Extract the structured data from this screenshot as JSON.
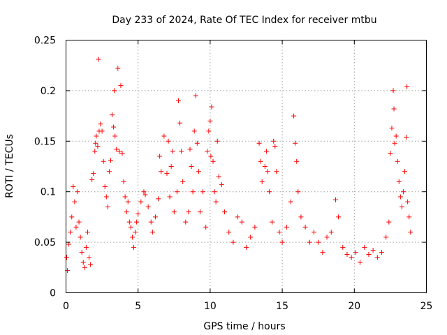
{
  "chart_data": {
    "type": "scatter",
    "title": "Day 233 of 2024, Rate Of TEC Index for receiver mtbu",
    "xlabel": "GPS time / hours",
    "ylabel": "ROTI / TECUs",
    "xlim": [
      0,
      25
    ],
    "ylim": [
      0,
      0.25
    ],
    "x_ticks": [
      "0",
      "5",
      "10",
      "15",
      "20",
      "25"
    ],
    "y_ticks": [
      "0",
      "0.05",
      "0.1",
      "0.15",
      "0.2",
      "0.25"
    ],
    "grid": true,
    "marker": "plus",
    "color": "#ff0000",
    "series": [
      {
        "points": [
          [
            0.05,
            0.035
          ],
          [
            0.1,
            0.022
          ],
          [
            0.2,
            0.048
          ],
          [
            0.3,
            0.06
          ],
          [
            0.4,
            0.075
          ],
          [
            0.5,
            0.105
          ],
          [
            0.6,
            0.09
          ],
          [
            0.7,
            0.065
          ],
          [
            0.8,
            0.1
          ],
          [
            0.9,
            0.07
          ],
          [
            1.0,
            0.055
          ],
          [
            1.1,
            0.04
          ],
          [
            1.2,
            0.03
          ],
          [
            1.3,
            0.025
          ],
          [
            1.4,
            0.045
          ],
          [
            1.5,
            0.06
          ],
          [
            1.6,
            0.035
          ],
          [
            1.7,
            0.028
          ],
          [
            1.8,
            0.112
          ],
          [
            1.9,
            0.118
          ],
          [
            2.0,
            0.14
          ],
          [
            2.05,
            0.148
          ],
          [
            2.1,
            0.155
          ],
          [
            2.2,
            0.145
          ],
          [
            2.25,
            0.231
          ],
          [
            2.3,
            0.16
          ],
          [
            2.4,
            0.167
          ],
          [
            2.5,
            0.16
          ],
          [
            2.6,
            0.13
          ],
          [
            2.7,
            0.105
          ],
          [
            2.8,
            0.095
          ],
          [
            2.9,
            0.085
          ],
          [
            3.0,
            0.12
          ],
          [
            3.1,
            0.131
          ],
          [
            3.2,
            0.176
          ],
          [
            3.3,
            0.164
          ],
          [
            3.35,
            0.2
          ],
          [
            3.4,
            0.155
          ],
          [
            3.5,
            0.142
          ],
          [
            3.6,
            0.222
          ],
          [
            3.7,
            0.14
          ],
          [
            3.8,
            0.205
          ],
          [
            3.9,
            0.138
          ],
          [
            4.0,
            0.11
          ],
          [
            4.1,
            0.095
          ],
          [
            4.2,
            0.08
          ],
          [
            4.3,
            0.09
          ],
          [
            4.4,
            0.07
          ],
          [
            4.5,
            0.065
          ],
          [
            4.6,
            0.055
          ],
          [
            4.7,
            0.045
          ],
          [
            4.8,
            0.06
          ],
          [
            4.9,
            0.07
          ],
          [
            5.0,
            0.078
          ],
          [
            5.2,
            0.09
          ],
          [
            5.4,
            0.1
          ],
          [
            5.5,
            0.097
          ],
          [
            5.7,
            0.085
          ],
          [
            5.9,
            0.07
          ],
          [
            6.0,
            0.06
          ],
          [
            6.2,
            0.075
          ],
          [
            6.4,
            0.093
          ],
          [
            6.5,
            0.135
          ],
          [
            6.6,
            0.12
          ],
          [
            6.8,
            0.155
          ],
          [
            7.0,
            0.118
          ],
          [
            7.1,
            0.15
          ],
          [
            7.2,
            0.095
          ],
          [
            7.3,
            0.125
          ],
          [
            7.4,
            0.14
          ],
          [
            7.5,
            0.08
          ],
          [
            7.7,
            0.1
          ],
          [
            7.8,
            0.19
          ],
          [
            7.9,
            0.168
          ],
          [
            8.0,
            0.14
          ],
          [
            8.1,
            0.11
          ],
          [
            8.3,
            0.07
          ],
          [
            8.5,
            0.08
          ],
          [
            8.6,
            0.142
          ],
          [
            8.7,
            0.125
          ],
          [
            8.8,
            0.1
          ],
          [
            8.9,
            0.16
          ],
          [
            9.0,
            0.195
          ],
          [
            9.1,
            0.148
          ],
          [
            9.2,
            0.12
          ],
          [
            9.3,
            0.08
          ],
          [
            9.5,
            0.1
          ],
          [
            9.7,
            0.065
          ],
          [
            9.8,
            0.14
          ],
          [
            9.9,
            0.16
          ],
          [
            10.0,
            0.17
          ],
          [
            10.05,
            0.135
          ],
          [
            10.1,
            0.184
          ],
          [
            10.2,
            0.13
          ],
          [
            10.3,
            0.1
          ],
          [
            10.4,
            0.09
          ],
          [
            10.5,
            0.15
          ],
          [
            10.6,
            0.115
          ],
          [
            10.8,
            0.107
          ],
          [
            11.0,
            0.08
          ],
          [
            11.3,
            0.06
          ],
          [
            11.6,
            0.05
          ],
          [
            11.9,
            0.075
          ],
          [
            12.2,
            0.07
          ],
          [
            12.5,
            0.045
          ],
          [
            12.8,
            0.055
          ],
          [
            13.1,
            0.065
          ],
          [
            13.4,
            0.148
          ],
          [
            13.5,
            0.13
          ],
          [
            13.6,
            0.11
          ],
          [
            13.8,
            0.125
          ],
          [
            13.9,
            0.14
          ],
          [
            14.0,
            0.12
          ],
          [
            14.1,
            0.1
          ],
          [
            14.3,
            0.07
          ],
          [
            14.4,
            0.15
          ],
          [
            14.5,
            0.145
          ],
          [
            14.6,
            0.12
          ],
          [
            14.8,
            0.06
          ],
          [
            15.0,
            0.05
          ],
          [
            15.3,
            0.065
          ],
          [
            15.6,
            0.09
          ],
          [
            15.8,
            0.175
          ],
          [
            15.9,
            0.148
          ],
          [
            16.0,
            0.13
          ],
          [
            16.1,
            0.1
          ],
          [
            16.3,
            0.075
          ],
          [
            16.6,
            0.065
          ],
          [
            16.9,
            0.05
          ],
          [
            17.2,
            0.06
          ],
          [
            17.5,
            0.05
          ],
          [
            17.8,
            0.04
          ],
          [
            18.1,
            0.055
          ],
          [
            18.4,
            0.06
          ],
          [
            18.7,
            0.092
          ],
          [
            18.9,
            0.075
          ],
          [
            19.2,
            0.045
          ],
          [
            19.5,
            0.038
          ],
          [
            19.8,
            0.035
          ],
          [
            20.1,
            0.04
          ],
          [
            20.4,
            0.03
          ],
          [
            20.7,
            0.045
          ],
          [
            21.0,
            0.038
          ],
          [
            21.3,
            0.042
          ],
          [
            21.6,
            0.035
          ],
          [
            21.9,
            0.04
          ],
          [
            22.2,
            0.055
          ],
          [
            22.4,
            0.07
          ],
          [
            22.5,
            0.138
          ],
          [
            22.6,
            0.163
          ],
          [
            22.7,
            0.2
          ],
          [
            22.75,
            0.182
          ],
          [
            22.8,
            0.148
          ],
          [
            22.9,
            0.155
          ],
          [
            23.0,
            0.13
          ],
          [
            23.1,
            0.11
          ],
          [
            23.2,
            0.095
          ],
          [
            23.3,
            0.085
          ],
          [
            23.4,
            0.1
          ],
          [
            23.5,
            0.12
          ],
          [
            23.6,
            0.154
          ],
          [
            23.65,
            0.204
          ],
          [
            23.7,
            0.09
          ],
          [
            23.8,
            0.075
          ],
          [
            23.9,
            0.06
          ]
        ]
      }
    ]
  }
}
